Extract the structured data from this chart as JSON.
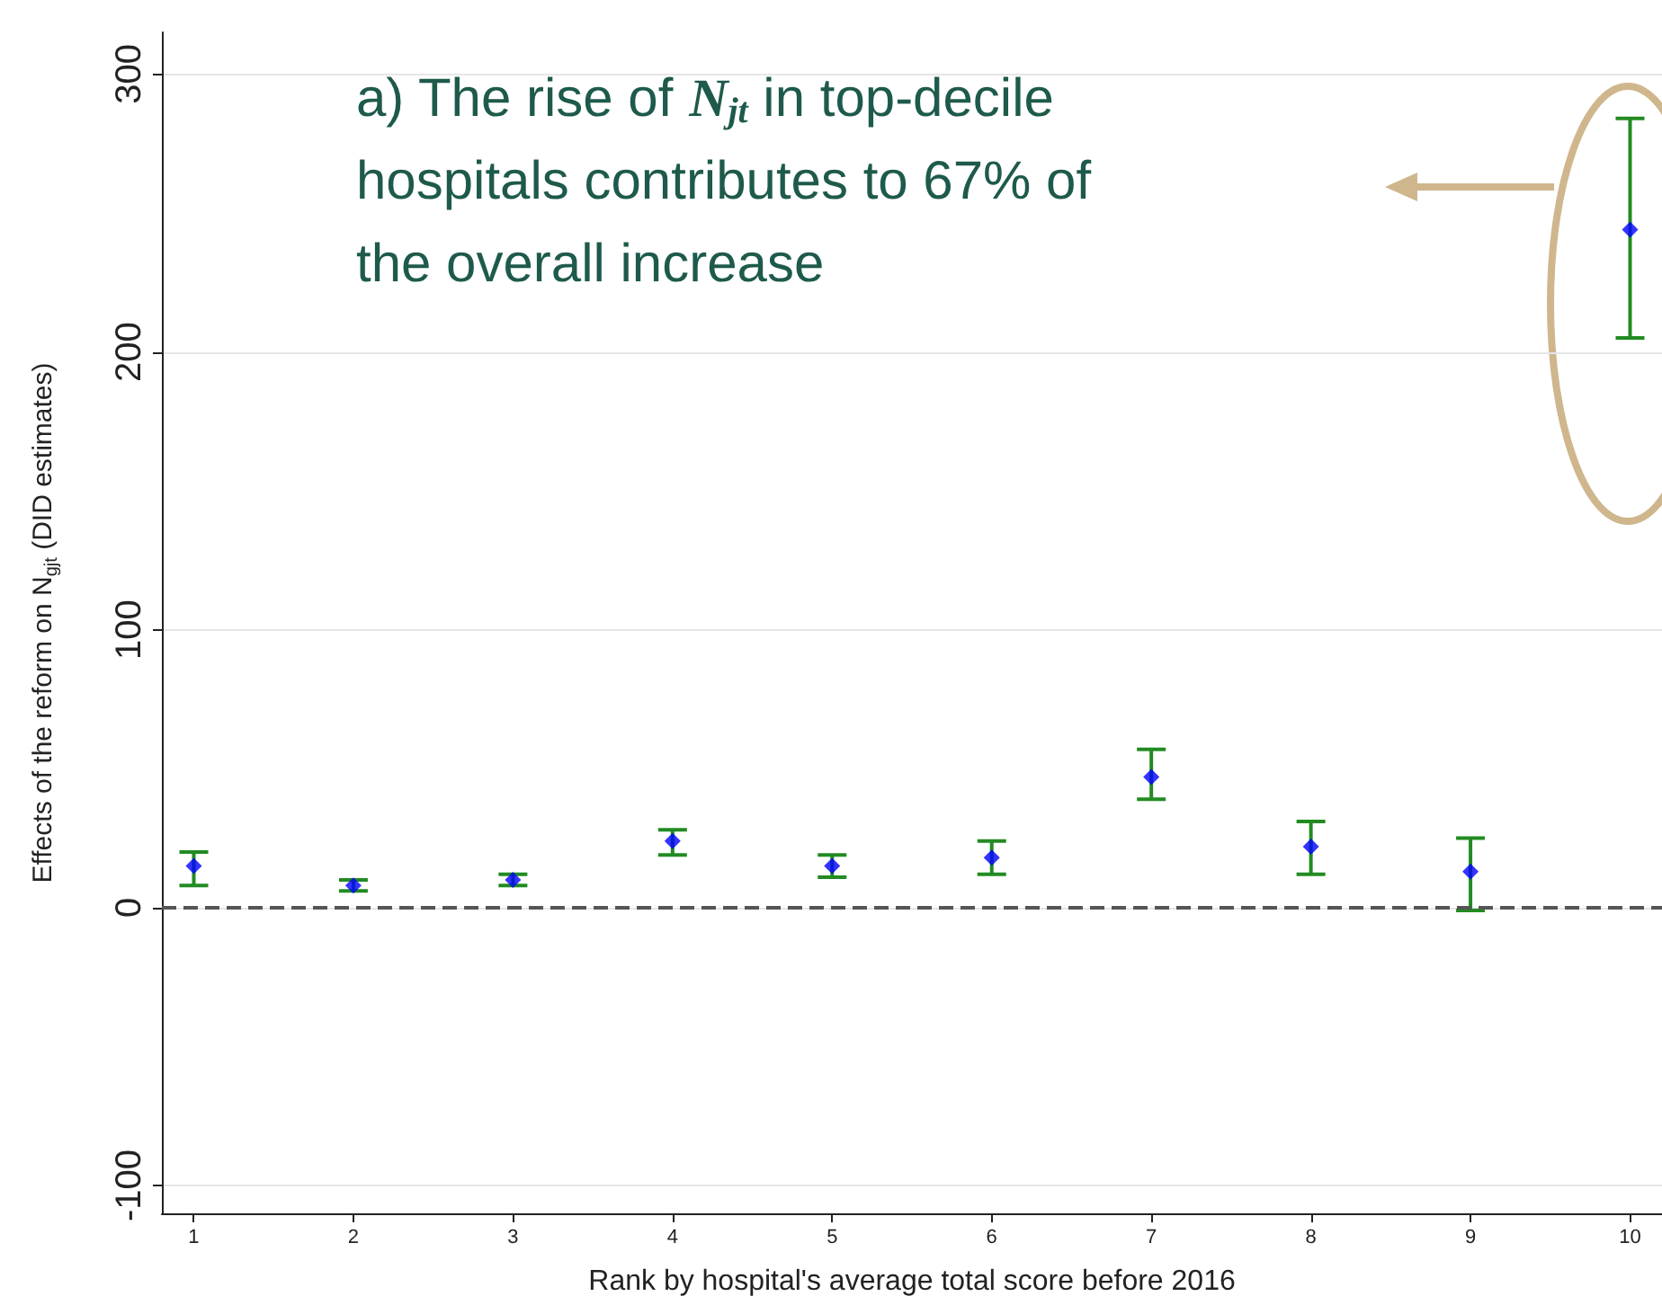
{
  "chart_data": {
    "type": "scatter",
    "xlabel": "Rank by hospital's average total score before 2016",
    "ylabel": "Effects of the reform on N$_{gjt}$ (DID estimates)",
    "annotations": [
      "a) The rise of N$_{jt}$ in top-decile\nhospitals contributes to 67% of\nthe overall increase"
    ],
    "x": [
      1,
      2,
      3,
      4,
      5,
      6,
      7,
      8,
      9,
      10
    ],
    "series": [
      {
        "color": "#0000ff",
        "values": [
          15,
          8,
          10,
          24,
          15,
          18,
          47,
          22,
          13,
          244
        ],
        "errors": [
          [
            8,
            20
          ],
          [
            6,
            10
          ],
          [
            8,
            12
          ],
          [
            19,
            28
          ],
          [
            11,
            19
          ],
          [
            12,
            24
          ],
          [
            39,
            57
          ],
          [
            12,
            31
          ],
          [
            -1,
            25
          ],
          [
            205,
            284
          ]
        ]
      }
    ],
    "marker": "diamond",
    "grid": "y",
    "xlim": [
      0.8,
      10.2
    ],
    "xticks": [
      1,
      2,
      3,
      4,
      5,
      6,
      7,
      8,
      9,
      10
    ],
    "ylim": [
      -110,
      315
    ],
    "yticks": [
      -100,
      0,
      100,
      200,
      300
    ],
    "ref_lines": [
      {
        "axis": "y",
        "value": 0,
        "color": "#555555",
        "line_style": "dashed"
      }
    ]
  }
}
